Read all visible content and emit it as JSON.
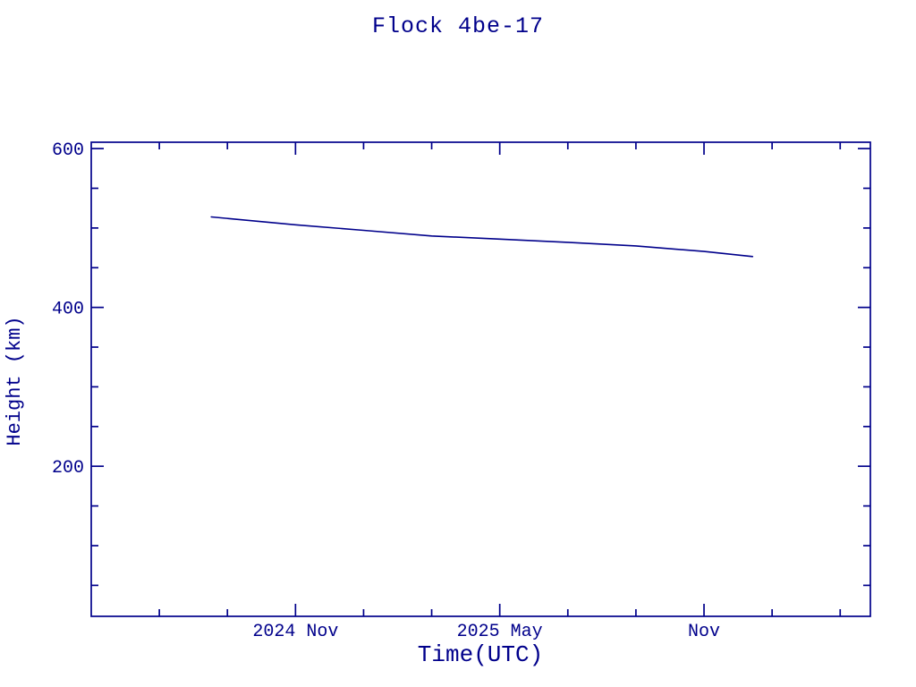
{
  "colors": {
    "plot": "#00008B",
    "background": "#FFFFFF"
  },
  "chart_data": {
    "type": "line",
    "title": "Flock 4be-17",
    "xlabel": "Time(UTC)",
    "ylabel": "Height (km)",
    "grid": false,
    "legend": "none",
    "x_axis": {
      "unit": "date (UTC)",
      "start": "2024-05-01",
      "end": "2026-03-28",
      "major_ticks": [
        {
          "date": "2024-11-01",
          "label": "2024 Nov"
        },
        {
          "date": "2025-05-01",
          "label": "2025 May"
        },
        {
          "date": "2025-11-01",
          "label": "Nov"
        }
      ],
      "minor_ticks": [
        "2024-07-01",
        "2024-09-01",
        "2025-01-01",
        "2025-03-01",
        "2025-07-01",
        "2025-09-01",
        "2026-01-01",
        "2026-03-01"
      ]
    },
    "y_axis": {
      "unit": "km",
      "min": 11,
      "max": 608,
      "major_ticks": [
        {
          "value": 600,
          "label": "600"
        },
        {
          "value": 400,
          "label": "400"
        },
        {
          "value": 200,
          "label": "200"
        }
      ],
      "minor_ticks": [
        550,
        500,
        450,
        350,
        300,
        250,
        150,
        100,
        50
      ]
    },
    "series": [
      {
        "name": "height",
        "color": "#00008B",
        "points": [
          [
            "2024-08-17",
            514
          ],
          [
            "2024-11-01",
            504
          ],
          [
            "2025-01-01",
            497
          ],
          [
            "2025-03-01",
            490
          ],
          [
            "2025-05-01",
            486
          ],
          [
            "2025-07-01",
            482
          ],
          [
            "2025-09-01",
            477.5
          ],
          [
            "2025-11-01",
            470.5
          ],
          [
            "2025-12-14",
            464
          ]
        ]
      }
    ]
  }
}
